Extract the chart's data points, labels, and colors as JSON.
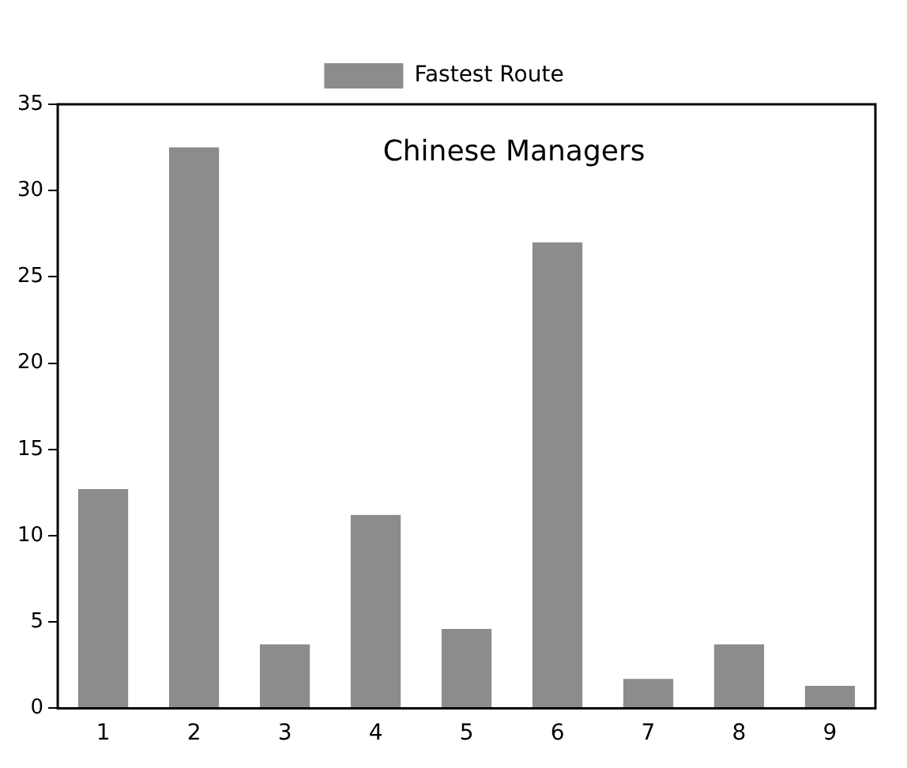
{
  "chart_data": {
    "type": "bar",
    "categories": [
      "1",
      "2",
      "3",
      "4",
      "5",
      "6",
      "7",
      "8",
      "9"
    ],
    "series": [
      {
        "name": "Fastest Route",
        "color": "#8c8c8c",
        "values": [
          12.7,
          32.5,
          3.7,
          11.2,
          4.6,
          27,
          1.7,
          3.7,
          1.3
        ]
      }
    ],
    "ylim": [
      0,
      35
    ],
    "yticks": [
      0,
      5,
      10,
      15,
      20,
      25,
      30,
      35
    ],
    "grid": false,
    "legend": "top",
    "title": "Chinese Managers"
  }
}
